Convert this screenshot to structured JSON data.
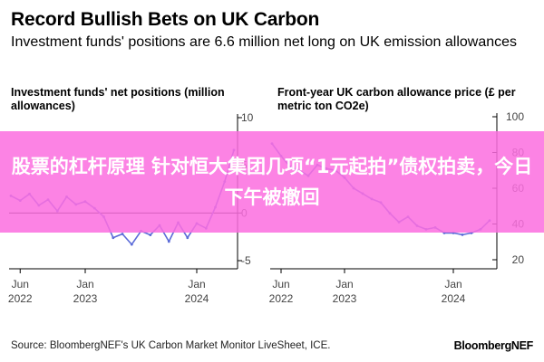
{
  "title": "Record Bullish Bets on UK Carbon",
  "subtitle": "Investment funds' positions are 6.6 million net long on UK emission allowances",
  "banner_text": "股票的杠杆原理 针对恒大集团几项“1元起拍”债权拍卖，今日下午被撤回",
  "source": "Source: BloombergNEF's UK Carbon Market Monitor LiveSheet, ICE.",
  "brand": "BloombergNEF",
  "colors": {
    "series": "#5b6bd8",
    "axis": "#000000",
    "banner": "#fc6fdf"
  },
  "chart_data": [
    {
      "type": "line",
      "title": "Investment funds' net positions (million allowances)",
      "x_ticks": [
        {
          "line1": "Jun",
          "line2": "2022",
          "x": "2022-06"
        },
        {
          "line1": "Jan",
          "line2": "2023",
          "x": "2023-01"
        },
        {
          "line1": "Jan",
          "line2": "2024",
          "x": "2024-01"
        }
      ],
      "y_ticks": [
        10,
        5,
        0,
        -5
      ],
      "ylim": [
        -5,
        10
      ],
      "zero_line": 0,
      "series": [
        {
          "x": [
            "2022-05",
            "2022-06",
            "2022-07",
            "2022-08",
            "2022-09",
            "2022-10",
            "2022-11",
            "2022-12",
            "2023-01",
            "2023-02",
            "2023-03",
            "2023-04",
            "2023-05",
            "2023-06",
            "2023-07",
            "2023-08",
            "2023-09",
            "2023-10",
            "2023-11",
            "2023-12",
            "2024-01",
            "2024-02",
            "2024-03",
            "2024-04",
            "2024-05"
          ],
          "y": [
            1.8,
            1.3,
            2.0,
            0.8,
            1.4,
            0.2,
            1.7,
            0.9,
            1.2,
            0.5,
            -0.4,
            -2.6,
            -2.2,
            -3.3,
            -1.9,
            -2.3,
            -1.3,
            -3.0,
            -1.0,
            -2.6,
            -1.1,
            -1.6,
            0.6,
            3.3,
            6.6
          ]
        }
      ]
    },
    {
      "type": "line",
      "title": "Front-year UK carbon allowance price (£ per metric ton CO2e)",
      "x_ticks": [
        {
          "line1": "Jun",
          "line2": "2022",
          "x": "2022-06"
        },
        {
          "line1": "Jan",
          "line2": "2023",
          "x": "2023-01"
        },
        {
          "line1": "Jan",
          "line2": "2024",
          "x": "2024-01"
        }
      ],
      "y_ticks": [
        100,
        80,
        60,
        40,
        20
      ],
      "ylim": [
        20,
        100
      ],
      "series": [
        {
          "x": [
            "2022-05",
            "2022-06",
            "2022-07",
            "2022-08",
            "2022-09",
            "2022-10",
            "2022-11",
            "2022-12",
            "2023-01",
            "2023-02",
            "2023-03",
            "2023-04",
            "2023-05",
            "2023-06",
            "2023-07",
            "2023-08",
            "2023-09",
            "2023-10",
            "2023-11",
            "2023-12",
            "2024-01",
            "2024-02",
            "2024-03",
            "2024-04",
            "2024-05"
          ],
          "y": [
            85,
            78,
            72,
            70,
            67,
            73,
            71,
            70,
            66,
            60,
            57,
            54,
            52,
            46,
            41,
            44,
            39,
            37,
            38,
            35,
            35,
            34,
            35,
            37,
            42
          ]
        }
      ]
    }
  ]
}
